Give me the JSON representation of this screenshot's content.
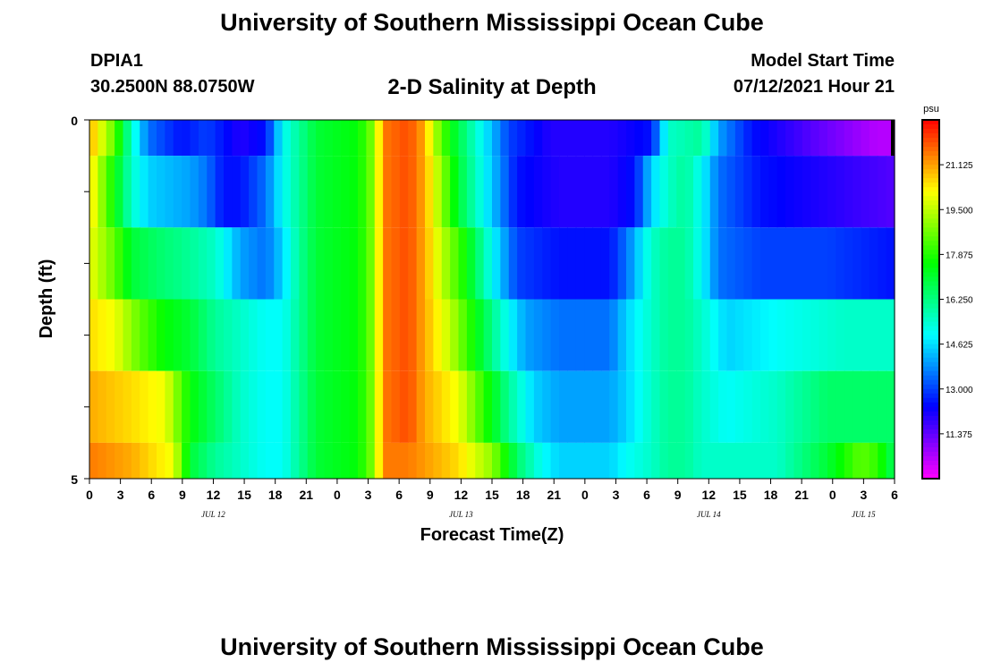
{
  "header": {
    "title": "University of Southern Mississippi Ocean Cube",
    "station": "DPIA1",
    "coordinates": "30.2500N  88.0750W",
    "subtitle": "2-D Salinity at Depth",
    "model_start_label": "Model Start Time",
    "model_start_value": "07/12/2021 Hour 21"
  },
  "footer": {
    "title": "University of Southern Mississippi Ocean Cube"
  },
  "chart_data": {
    "type": "heatmap",
    "xlabel": "Forecast Time(Z)",
    "ylabel": "Depth (ft)",
    "x_tick_labels": [
      "0",
      "3",
      "6",
      "9",
      "12",
      "15",
      "18",
      "21",
      "0",
      "3",
      "6",
      "9",
      "12",
      "15",
      "18",
      "21",
      "0",
      "3",
      "6",
      "9",
      "12",
      "15",
      "18",
      "21",
      "0",
      "3",
      "6"
    ],
    "date_labels": [
      "JUL 12",
      "JUL 13",
      "JUL 14",
      "JUL 15"
    ],
    "y_tick_labels": [
      "0",
      "5"
    ],
    "ylim": [
      0,
      5
    ],
    "colorbar": {
      "unit": "psu",
      "tick_labels": [
        "21.125",
        "19.500",
        "17.875",
        "16.250",
        "14.625",
        "13.000",
        "11.375"
      ],
      "range": [
        9.75,
        22.75
      ]
    },
    "rows": [
      {
        "depth_band": [
          0,
          0.5
        ],
        "breakpoints": [
          [
            0,
            21.0
          ],
          [
            3,
            18.5
          ],
          [
            5,
            15.5
          ],
          [
            7,
            13.5
          ],
          [
            11,
            12.5
          ],
          [
            14,
            13.0
          ],
          [
            18,
            12.0
          ],
          [
            21,
            12.5
          ],
          [
            23,
            15.0
          ],
          [
            25,
            16.0
          ],
          [
            27,
            17.0
          ],
          [
            32,
            17.5
          ],
          [
            34,
            19.0
          ],
          [
            35,
            21.5
          ],
          [
            38,
            22.0
          ],
          [
            40,
            21.0
          ],
          [
            41,
            19.5
          ],
          [
            43,
            17.5
          ],
          [
            46,
            15.5
          ],
          [
            50,
            13.0
          ],
          [
            55,
            12.0
          ],
          [
            62,
            12.0
          ],
          [
            67,
            12.5
          ],
          [
            69,
            15.5
          ],
          [
            73,
            16.0
          ],
          [
            75,
            14.0
          ],
          [
            79,
            12.5
          ],
          [
            86,
            11.5
          ],
          [
            94,
            10.5
          ],
          [
            96,
            10.5
          ]
        ]
      },
      {
        "depth_band": [
          0.5,
          1.5
        ],
        "breakpoints": [
          [
            0,
            20.5
          ],
          [
            3,
            17.5
          ],
          [
            5,
            15.5
          ],
          [
            7,
            14.5
          ],
          [
            12,
            14.0
          ],
          [
            14,
            13.5
          ],
          [
            16,
            12.5
          ],
          [
            18,
            12.5
          ],
          [
            21,
            13.5
          ],
          [
            23,
            15.0
          ],
          [
            25,
            16.0
          ],
          [
            27,
            17.0
          ],
          [
            32,
            17.5
          ],
          [
            34,
            19.0
          ],
          [
            35,
            21.5
          ],
          [
            38,
            22.0
          ],
          [
            40,
            21.0
          ],
          [
            42,
            19.0
          ],
          [
            44,
            17.0
          ],
          [
            47,
            15.0
          ],
          [
            51,
            12.5
          ],
          [
            56,
            12.0
          ],
          [
            62,
            12.0
          ],
          [
            65,
            12.5
          ],
          [
            67,
            14.5
          ],
          [
            69,
            15.5
          ],
          [
            71,
            16.0
          ],
          [
            73,
            15.0
          ],
          [
            75,
            13.5
          ],
          [
            80,
            12.5
          ],
          [
            88,
            12.0
          ],
          [
            96,
            11.5
          ]
        ]
      },
      {
        "depth_band": [
          1.5,
          2.5
        ],
        "breakpoints": [
          [
            0,
            20.0
          ],
          [
            3,
            18.5
          ],
          [
            5,
            17.0
          ],
          [
            8,
            16.5
          ],
          [
            12,
            16.0
          ],
          [
            15,
            15.5
          ],
          [
            18,
            14.0
          ],
          [
            21,
            13.5
          ],
          [
            23,
            14.5
          ],
          [
            25,
            16.0
          ],
          [
            27,
            17.0
          ],
          [
            32,
            17.5
          ],
          [
            34,
            19.0
          ],
          [
            35,
            21.5
          ],
          [
            38,
            22.0
          ],
          [
            40,
            21.0
          ],
          [
            42,
            19.5
          ],
          [
            45,
            17.5
          ],
          [
            48,
            15.0
          ],
          [
            51,
            13.0
          ],
          [
            56,
            12.5
          ],
          [
            62,
            12.5
          ],
          [
            64,
            13.5
          ],
          [
            67,
            15.5
          ],
          [
            69,
            16.0
          ],
          [
            71,
            16.0
          ],
          [
            73,
            15.0
          ],
          [
            75,
            13.5
          ],
          [
            80,
            13.0
          ],
          [
            88,
            13.0
          ],
          [
            96,
            12.5
          ]
        ]
      },
      {
        "depth_band": [
          2.5,
          3.5
        ],
        "breakpoints": [
          [
            0,
            20.5
          ],
          [
            3,
            20.0
          ],
          [
            6,
            18.5
          ],
          [
            9,
            17.5
          ],
          [
            12,
            17.0
          ],
          [
            15,
            16.0
          ],
          [
            18,
            15.5
          ],
          [
            21,
            15.0
          ],
          [
            23,
            15.0
          ],
          [
            25,
            16.0
          ],
          [
            27,
            17.0
          ],
          [
            32,
            17.5
          ],
          [
            34,
            19.0
          ],
          [
            35,
            21.5
          ],
          [
            38,
            22.0
          ],
          [
            40,
            21.0
          ],
          [
            43,
            19.5
          ],
          [
            46,
            17.5
          ],
          [
            49,
            15.5
          ],
          [
            52,
            14.0
          ],
          [
            56,
            13.5
          ],
          [
            62,
            13.5
          ],
          [
            64,
            14.5
          ],
          [
            67,
            15.5
          ],
          [
            69,
            16.0
          ],
          [
            71,
            16.0
          ],
          [
            73,
            15.5
          ],
          [
            76,
            14.5
          ],
          [
            82,
            15.0
          ],
          [
            90,
            15.5
          ],
          [
            96,
            15.5
          ]
        ]
      },
      {
        "depth_band": [
          3.5,
          4.5
        ],
        "breakpoints": [
          [
            0,
            21.0
          ],
          [
            5,
            20.5
          ],
          [
            9,
            20.0
          ],
          [
            12,
            17.5
          ],
          [
            15,
            16.5
          ],
          [
            18,
            15.5
          ],
          [
            21,
            15.0
          ],
          [
            23,
            15.0
          ],
          [
            25,
            16.0
          ],
          [
            27,
            17.0
          ],
          [
            32,
            17.5
          ],
          [
            34,
            19.0
          ],
          [
            35,
            21.5
          ],
          [
            38,
            22.0
          ],
          [
            40,
            21.0
          ],
          [
            44,
            20.0
          ],
          [
            47,
            18.0
          ],
          [
            50,
            16.0
          ],
          [
            53,
            14.5
          ],
          [
            56,
            14.0
          ],
          [
            62,
            14.0
          ],
          [
            64,
            14.5
          ],
          [
            67,
            15.5
          ],
          [
            69,
            16.0
          ],
          [
            71,
            16.0
          ],
          [
            73,
            15.5
          ],
          [
            76,
            15.0
          ],
          [
            82,
            15.5
          ],
          [
            88,
            16.5
          ],
          [
            92,
            16.5
          ],
          [
            96,
            16.5
          ]
        ]
      },
      {
        "depth_band": [
          4.5,
          5.0
        ],
        "breakpoints": [
          [
            0,
            21.5
          ],
          [
            5,
            21.0
          ],
          [
            10,
            20.0
          ],
          [
            12,
            17.0
          ],
          [
            15,
            16.0
          ],
          [
            18,
            15.5
          ],
          [
            21,
            15.0
          ],
          [
            23,
            15.0
          ],
          [
            25,
            16.0
          ],
          [
            27,
            17.0
          ],
          [
            32,
            17.5
          ],
          [
            34,
            19.0
          ],
          [
            35,
            21.5
          ],
          [
            38,
            21.5
          ],
          [
            44,
            20.5
          ],
          [
            48,
            19.0
          ],
          [
            51,
            16.5
          ],
          [
            54,
            15.0
          ],
          [
            56,
            14.5
          ],
          [
            62,
            14.5
          ],
          [
            64,
            15.0
          ],
          [
            67,
            15.5
          ],
          [
            69,
            16.0
          ],
          [
            71,
            16.0
          ],
          [
            73,
            15.5
          ],
          [
            76,
            15.5
          ],
          [
            82,
            15.5
          ],
          [
            88,
            17.0
          ],
          [
            92,
            18.5
          ],
          [
            94,
            18.0
          ],
          [
            96,
            16.5
          ]
        ]
      }
    ]
  }
}
